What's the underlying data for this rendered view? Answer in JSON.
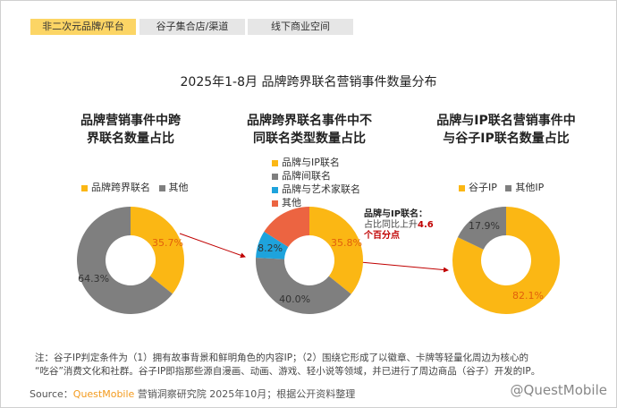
{
  "tabs": [
    {
      "label": "非二次元品牌/平台",
      "active": true
    },
    {
      "label": "谷子集合店/渠道",
      "active": false
    },
    {
      "label": "线下商业空间",
      "active": false
    }
  ],
  "title": "2025年1-8月 品牌跨界联名营销事件数量分布",
  "annotation": {
    "head": "品牌与IP联名：",
    "line2": "占比同比上升",
    "value": "4.6",
    "unit": "个百分点"
  },
  "note_lines": [
    "注：谷子IP判定条件为（1）拥有故事背景和鲜明角色的内容IP；（2）围绕它形成了以徽章、卡牌等轻量化周边为核心的",
    "“吃谷”消费文化和社群。谷子IP即指那些源自漫画、动画、游戏、轻小说等领域，并已进行了周边商品（谷子）开发的IP。"
  ],
  "source": {
    "label": "Source：",
    "brand": "QuestMobile",
    "rest": " 营销洞察研究院 2025年10月；根据公开资料整理"
  },
  "watermark": "@QuestMobile",
  "chart_data": [
    {
      "type": "pie",
      "donut": true,
      "title": "品牌营销事件中跨界联名数量占比",
      "title_lines": [
        "品牌营销事件中跨",
        "界联名数量占比"
      ],
      "categories": [
        "品牌跨界联名",
        "其他"
      ],
      "values": [
        35.7,
        64.3
      ],
      "labels": [
        "35.7%",
        "64.3%"
      ],
      "colors": [
        "#fbb714",
        "#7f7f7f"
      ],
      "label_colors": [
        "#e2600b",
        "#333"
      ]
    },
    {
      "type": "pie",
      "donut": true,
      "title": "品牌跨界联名事件中不同联名类型数量占比",
      "title_lines": [
        "品牌跨界联名事件中不",
        "同联名类型数量占比"
      ],
      "categories": [
        "品牌与IP联名",
        "品牌间联名",
        "品牌与艺术家联名",
        "其他"
      ],
      "values": [
        35.8,
        40.0,
        8.2,
        16.0
      ],
      "labels": [
        "35.8%",
        "40.0%",
        "8.2%",
        ""
      ],
      "colors": [
        "#fbb714",
        "#7f7f7f",
        "#1ea3dc",
        "#ec6441"
      ],
      "label_colors": [
        "#e2600b",
        "#333",
        "#333",
        "#333"
      ]
    },
    {
      "type": "pie",
      "donut": true,
      "title": "品牌与IP联名营销事件中与谷子IP联名数量占比",
      "title_lines": [
        "品牌与IP联名营销事件中",
        "与谷子IP联名数量占比"
      ],
      "categories": [
        "谷子IP",
        "其他IP"
      ],
      "values": [
        82.1,
        17.9
      ],
      "labels": [
        "82.1%",
        "17.9%"
      ],
      "colors": [
        "#fbb714",
        "#7f7f7f"
      ],
      "label_colors": [
        "#e2600b",
        "#333"
      ]
    }
  ]
}
